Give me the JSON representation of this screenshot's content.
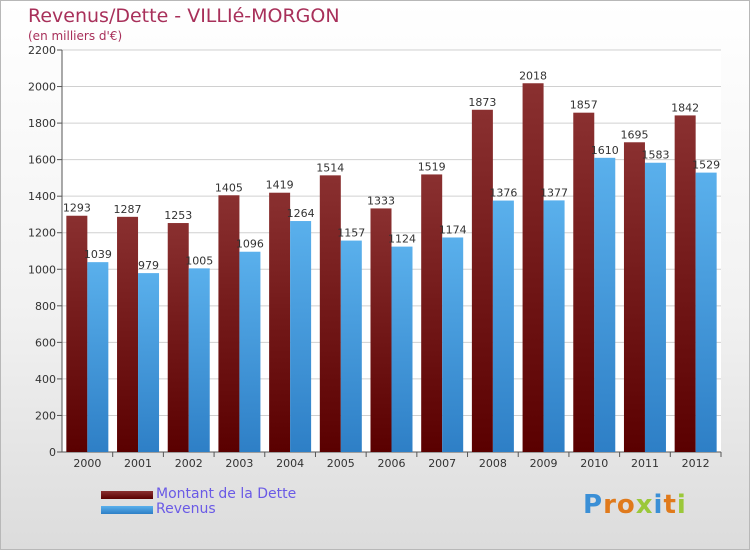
{
  "chart_data": {
    "type": "bar",
    "title": "Revenus/Dette - VILLIé-MORGON",
    "subtitle": "(en milliers d'€)",
    "categories": [
      "2000",
      "2001",
      "2002",
      "2003",
      "2004",
      "2005",
      "2006",
      "2007",
      "2008",
      "2009",
      "2010",
      "2011",
      "2012"
    ],
    "series": [
      {
        "name": "Montant de la Dette",
        "color": "#6b1010",
        "values": [
          1293,
          1287,
          1253,
          1405,
          1419,
          1514,
          1333,
          1519,
          1873,
          2018,
          1857,
          1695,
          1842
        ]
      },
      {
        "name": "Revenus",
        "color": "#3a8fd6",
        "values": [
          1039,
          979,
          1005,
          1096,
          1264,
          1157,
          1124,
          1174,
          1376,
          1377,
          1610,
          1583,
          1529
        ]
      }
    ],
    "ylim": [
      0,
      2200
    ],
    "ytick_step": 200,
    "grid": true,
    "legend": "bottom-left"
  },
  "branding": {
    "logo_letters": [
      "P",
      "r",
      "o",
      "x",
      "i",
      "t",
      "i"
    ],
    "logo_colors": [
      "#3a8fd6",
      "#e07a1c",
      "#e07a1c",
      "#9bc83a",
      "#3a8fd6",
      "#e07a1c",
      "#9bc83a"
    ]
  }
}
